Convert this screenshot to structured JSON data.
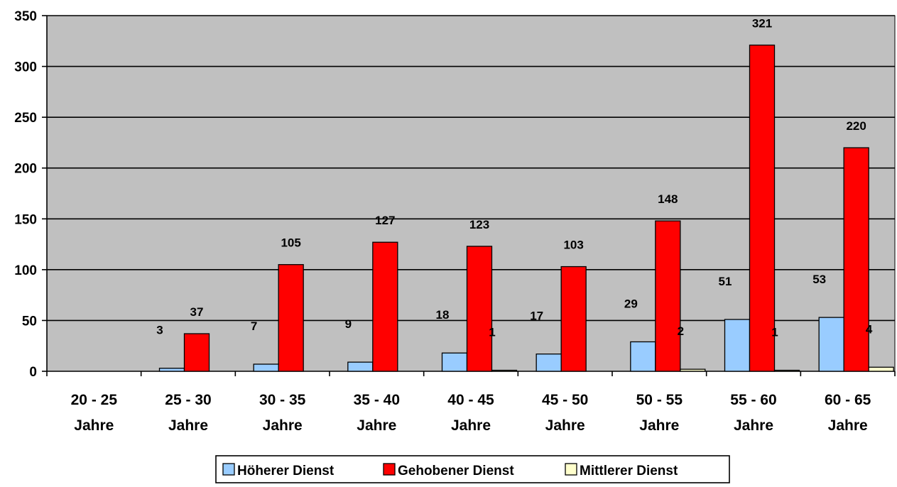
{
  "chart_data": {
    "type": "bar",
    "categories": [
      [
        "20 - 25",
        "Jahre"
      ],
      [
        "25 - 30",
        "Jahre"
      ],
      [
        "30 - 35",
        "Jahre"
      ],
      [
        "35 - 40",
        "Jahre"
      ],
      [
        "40 - 45",
        "Jahre"
      ],
      [
        "45 - 50",
        "Jahre"
      ],
      [
        "50 - 55",
        "Jahre"
      ],
      [
        "55 - 60",
        "Jahre"
      ],
      [
        "60 - 65",
        "Jahre"
      ]
    ],
    "series": [
      {
        "name": "Höherer Dienst",
        "color": "#99ccff",
        "values": [
          0,
          3,
          7,
          9,
          18,
          17,
          29,
          51,
          53
        ],
        "labels": [
          "",
          "3",
          "7",
          "9",
          "18",
          "17",
          "29",
          "51",
          "53"
        ]
      },
      {
        "name": "Gehobener Dienst",
        "color": "#ff0000",
        "values": [
          0,
          37,
          105,
          127,
          123,
          103,
          148,
          321,
          220
        ],
        "labels": [
          "",
          "37",
          "105",
          "127",
          "123",
          "103",
          "148",
          "321",
          "220"
        ]
      },
      {
        "name": "Mittlerer Dienst",
        "color": "#ffffcc",
        "values": [
          0,
          0,
          0,
          0,
          1,
          0,
          2,
          1,
          4
        ],
        "labels": [
          "",
          "",
          "",
          "",
          "1",
          "",
          "2",
          "1",
          "4"
        ]
      }
    ],
    "ylim": [
      0,
      350
    ],
    "yticks": [
      0,
      50,
      100,
      150,
      200,
      250,
      300,
      350
    ],
    "grid": true,
    "plot_background": "#c0c0c0",
    "legend": "bottom",
    "title": "",
    "xlabel": "",
    "ylabel": ""
  }
}
